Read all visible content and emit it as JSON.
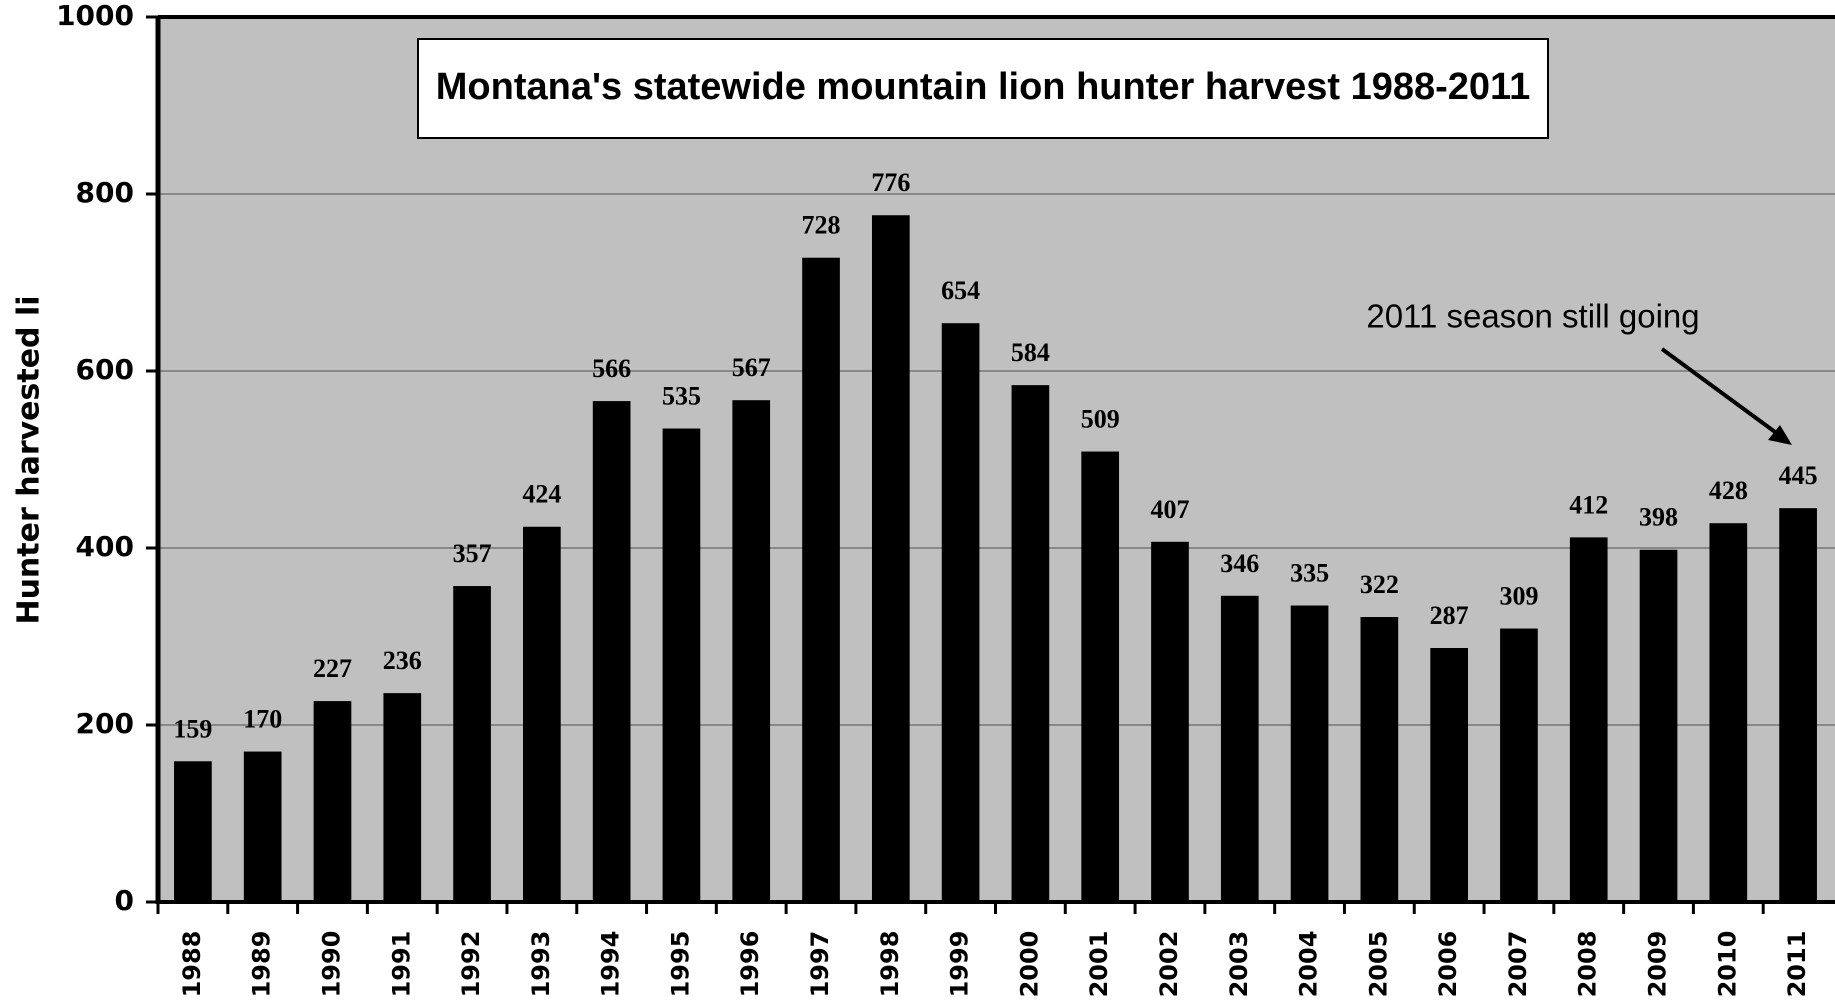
{
  "chart_data": {
    "type": "bar",
    "title": "Montana's statewide mountain lion hunter harvest 1988-2011",
    "y_label": "Hunter harvested li",
    "annotation": "2011 season still going",
    "categories": [
      "1988",
      "1989",
      "1990",
      "1991",
      "1992",
      "1993",
      "1994",
      "1995",
      "1996",
      "1997",
      "1998",
      "1999",
      "2000",
      "2001",
      "2002",
      "2003",
      "2004",
      "2005",
      "2006",
      "2007",
      "2008",
      "2009",
      "2010",
      "2011"
    ],
    "values": [
      159,
      170,
      227,
      236,
      357,
      424,
      566,
      535,
      567,
      728,
      776,
      654,
      584,
      509,
      407,
      346,
      335,
      322,
      287,
      309,
      412,
      398,
      428,
      445
    ],
    "color": "#000000",
    "ylim": [
      0,
      1000
    ],
    "yticks": [
      0,
      200,
      400,
      600,
      800,
      1000
    ],
    "grid": true
  }
}
